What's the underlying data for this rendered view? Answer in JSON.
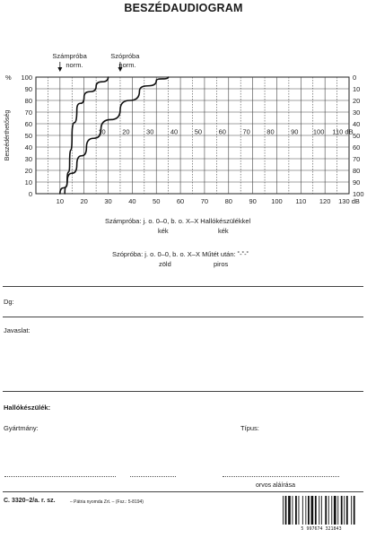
{
  "title": "BESZÉDAUDIOGRAM",
  "chart_data": {
    "type": "line",
    "ylabel": "Beszédérthetőség",
    "left_unit": "%",
    "left_ticks": [
      "100",
      "90",
      "80",
      "70",
      "60",
      "50",
      "40",
      "30",
      "20",
      "10",
      "0"
    ],
    "right_ticks": [
      "0",
      "10",
      "20",
      "30",
      "40",
      "50",
      "60",
      "70",
      "80",
      "90",
      "100"
    ],
    "bottom_ticks": [
      "10",
      "20",
      "30",
      "40",
      "50",
      "60",
      "70",
      "80",
      "90",
      "100",
      "110",
      "120",
      "130 dB"
    ],
    "inner_ticks": [
      "10",
      "20",
      "30",
      "40",
      "50",
      "60",
      "70",
      "80",
      "90",
      "100",
      "110 dB"
    ],
    "ylim": [
      0,
      100
    ],
    "xlim": [
      0,
      130
    ],
    "series": [
      {
        "name": "Számpróba norm.",
        "x": [
          12,
          13,
          14,
          15,
          17,
          20,
          25,
          30
        ],
        "y": [
          0,
          12,
          25,
          50,
          72,
          83,
          92,
          100
        ]
      },
      {
        "name": "Szópróba norm.",
        "x": [
          10,
          13,
          17,
          21,
          27,
          35,
          43,
          50,
          55
        ],
        "y": [
          0,
          10,
          25,
          40,
          55,
          72,
          88,
          97,
          100
        ]
      }
    ],
    "annotations": [
      "Számpróba",
      "norm.",
      "Szópróba",
      "norm."
    ]
  },
  "legend": {
    "line1": "Számpróba: j. o. 0–0, b. o. X–X Hallókészülékkel",
    "line1_sub1": "kék",
    "line1_sub2": "kék",
    "line2": "Szópróba: j. o. 0–0, b. o. X–X Műtét után: ˚-˚-˚",
    "line2_sub1": "zöld",
    "line2_sub2": "piros"
  },
  "form": {
    "dg": "Dg:",
    "javaslat": "Javaslat:",
    "hallokeszulek": "Hallókészülék:",
    "gyartmany": "Gyártmány:",
    "tipus": "Típus:",
    "signature": "orvos aláírása"
  },
  "footer": {
    "code": "C. 3320–2/a. r. sz.",
    "publisher": "– Pátria nyomda Zrt. – (Fsz.: 5-8194)",
    "barcode_number": "5 997674 321843"
  }
}
